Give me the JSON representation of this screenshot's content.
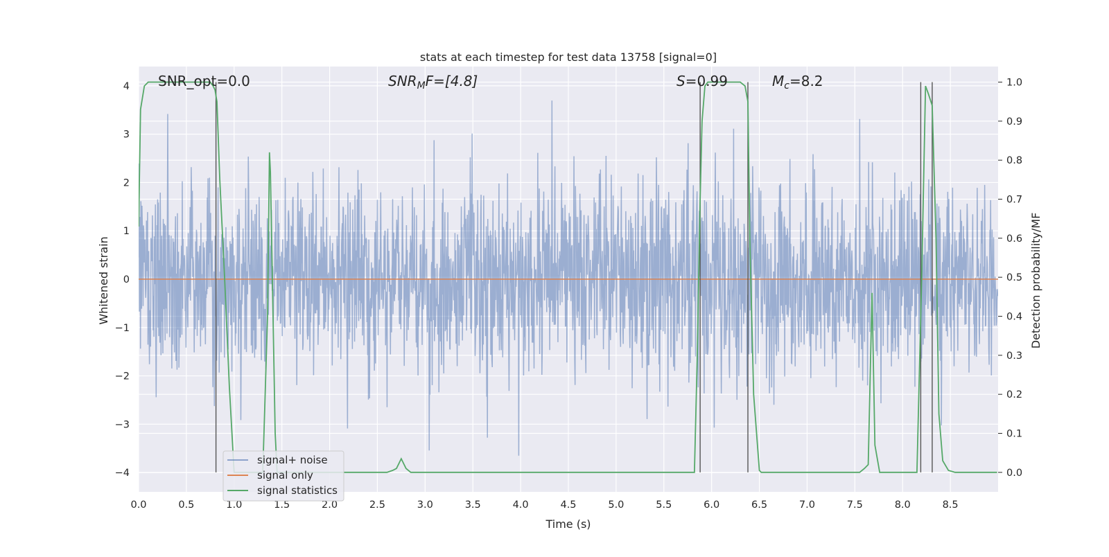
{
  "chart_data": {
    "type": "line",
    "title": "stats at each timestep for test data 13758 [signal=0]",
    "xlabel": "Time (s)",
    "ylabel_left": "Whitened strain",
    "ylabel_right": "Detection probability/MF",
    "xlim": [
      0.0,
      9.0
    ],
    "ylim_left": [
      -4.4,
      4.4
    ],
    "ylim_right": [
      -0.05,
      1.04
    ],
    "x_ticks": [
      "0.0",
      "0.5",
      "1.0",
      "1.5",
      "2.0",
      "2.5",
      "3.0",
      "3.5",
      "4.0",
      "4.5",
      "5.0",
      "5.5",
      "6.0",
      "6.5",
      "7.0",
      "7.5",
      "8.0",
      "8.5"
    ],
    "y_left_ticks": [
      "4",
      "3",
      "2",
      "1",
      "0",
      "−1",
      "−2",
      "−3",
      "−4"
    ],
    "y_right_ticks": [
      "1.0",
      "0.9",
      "0.8",
      "0.7",
      "0.6",
      "0.5",
      "0.4",
      "0.3",
      "0.2",
      "0.1",
      "0.0"
    ],
    "grid": true,
    "legend_position": "lower-left",
    "annotations": {
      "snr_opt": "SNR_opt=0.0",
      "snr_mf_sym": "SNR",
      "snr_mf_sub": "M",
      "snr_mf_rest": "F=[4.8]",
      "s_sym": "S",
      "s_rest": "=0.99",
      "mc_sym": "M",
      "mc_sub": "c",
      "mc_rest": "=8.2"
    },
    "vertical_markers": [
      0.81,
      5.88,
      6.38,
      8.19,
      8.31
    ],
    "noise_sample_rate_hz": 256,
    "series": [
      {
        "name": "signal+ noise",
        "color": "#4c72b0",
        "axis": "left",
        "summary": {
          "std": 1.0,
          "min": -3.9,
          "max": 4.0
        }
      },
      {
        "name": "signal only",
        "color": "#dd8452",
        "axis": "left",
        "constant": 0.0
      },
      {
        "name": "signal statistics",
        "color": "#55a868",
        "axis": "right",
        "x": [
          0.0,
          0.02,
          0.06,
          0.1,
          0.2,
          0.3,
          0.4,
          0.5,
          0.6,
          0.7,
          0.75,
          0.78,
          0.8,
          0.82,
          0.85,
          0.9,
          0.95,
          1.0,
          1.05,
          1.1,
          1.2,
          1.3,
          1.35,
          1.37,
          1.38,
          1.4,
          1.43,
          1.45,
          1.5,
          1.6,
          1.8,
          2.0,
          2.2,
          2.4,
          2.6,
          2.66,
          2.7,
          2.75,
          2.8,
          2.85,
          3.0,
          3.5,
          4.0,
          4.5,
          5.0,
          5.5,
          5.7,
          5.82,
          5.85,
          5.88,
          5.9,
          5.93,
          5.96,
          6.0,
          6.1,
          6.2,
          6.3,
          6.35,
          6.38,
          6.4,
          6.44,
          6.5,
          6.52,
          6.6,
          6.8,
          7.0,
          7.2,
          7.4,
          7.55,
          7.6,
          7.64,
          7.68,
          7.71,
          7.76,
          7.8,
          7.9,
          8.0,
          8.1,
          8.15,
          8.2,
          8.24,
          8.27,
          8.31,
          8.35,
          8.38,
          8.42,
          8.48,
          8.55,
          8.7,
          8.85,
          8.99
        ],
        "y": [
          0.63,
          0.93,
          0.99,
          1.0,
          1.0,
          1.0,
          1.0,
          1.0,
          1.0,
          1.0,
          1.0,
          0.99,
          0.98,
          0.95,
          0.75,
          0.5,
          0.22,
          0.0,
          0.0,
          0.0,
          0.0,
          0.0,
          0.4,
          0.82,
          0.77,
          0.5,
          0.1,
          0.0,
          0.0,
          0.0,
          0.0,
          0.0,
          0.0,
          0.0,
          0.0,
          0.005,
          0.01,
          0.035,
          0.01,
          0.0,
          0.0,
          0.0,
          0.0,
          0.0,
          0.0,
          0.0,
          0.0,
          0.0,
          0.3,
          0.7,
          0.9,
          0.99,
          1.0,
          1.0,
          1.0,
          1.0,
          1.0,
          0.99,
          0.95,
          0.6,
          0.2,
          0.005,
          0.0,
          0.0,
          0.0,
          0.0,
          0.0,
          0.0,
          0.0,
          0.01,
          0.02,
          0.46,
          0.07,
          0.0,
          0.0,
          0.0,
          0.0,
          0.0,
          0.0,
          0.5,
          0.99,
          0.97,
          0.94,
          0.6,
          0.15,
          0.03,
          0.005,
          0.0,
          0.0,
          0.0,
          0.0
        ]
      }
    ]
  }
}
